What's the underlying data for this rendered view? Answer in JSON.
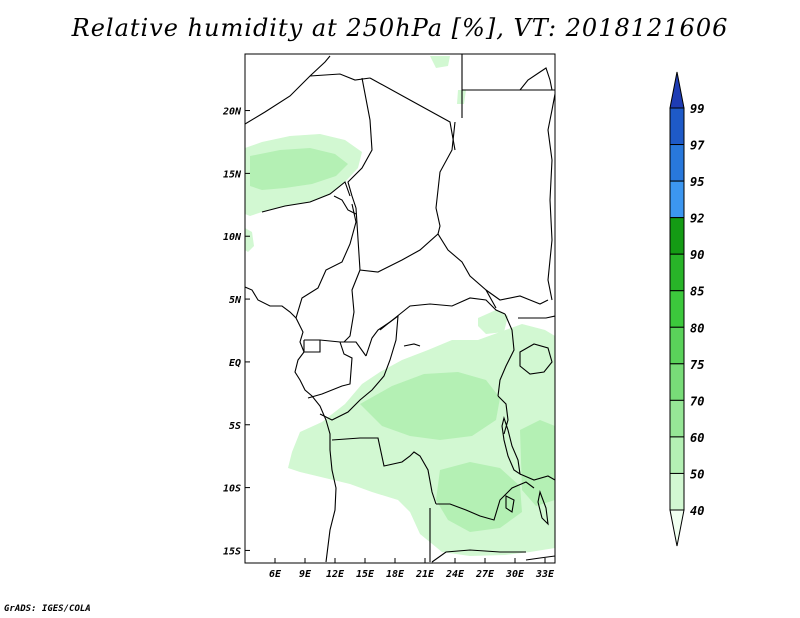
{
  "title": "Relative humidity at 250hPa [%], VT: 2018121606",
  "credit": "GrADS: IGES/COLA",
  "map": {
    "lon_range": [
      3,
      34
    ],
    "lat_range": [
      -16,
      24.5
    ],
    "lon_ticks": [
      {
        "value": 6,
        "label": "6E"
      },
      {
        "value": 9,
        "label": "9E"
      },
      {
        "value": 12,
        "label": "12E"
      },
      {
        "value": 15,
        "label": "15E"
      },
      {
        "value": 18,
        "label": "18E"
      },
      {
        "value": 21,
        "label": "21E"
      },
      {
        "value": 24,
        "label": "24E"
      },
      {
        "value": 27,
        "label": "27E"
      },
      {
        "value": 30,
        "label": "30E"
      },
      {
        "value": 33,
        "label": "33E"
      }
    ],
    "lat_ticks": [
      {
        "value": 20,
        "label": "20N"
      },
      {
        "value": 15,
        "label": "15N"
      },
      {
        "value": 10,
        "label": "10N"
      },
      {
        "value": 5,
        "label": "5N"
      },
      {
        "value": 0,
        "label": "EQ"
      },
      {
        "value": -5,
        "label": "5S"
      },
      {
        "value": -10,
        "label": "10S"
      },
      {
        "value": -15,
        "label": "15S"
      }
    ]
  },
  "colorbar": {
    "levels": [
      "40",
      "50",
      "60",
      "70",
      "75",
      "80",
      "85",
      "90",
      "92",
      "95",
      "97",
      "99"
    ],
    "colors": [
      "#f0fff0",
      "#d2f8d2",
      "#b4f0b4",
      "#96e696",
      "#78dc78",
      "#5ad25a",
      "#3cc83c",
      "#28b428",
      "#149b14",
      "#3c96f0",
      "#2878dc",
      "#1e5ac8",
      "#1e3cb4"
    ]
  },
  "legend_colors": {
    "range_60_70": "#b4f0b4",
    "range_50_60": "#d2f8d2",
    "border": "#000000"
  }
}
